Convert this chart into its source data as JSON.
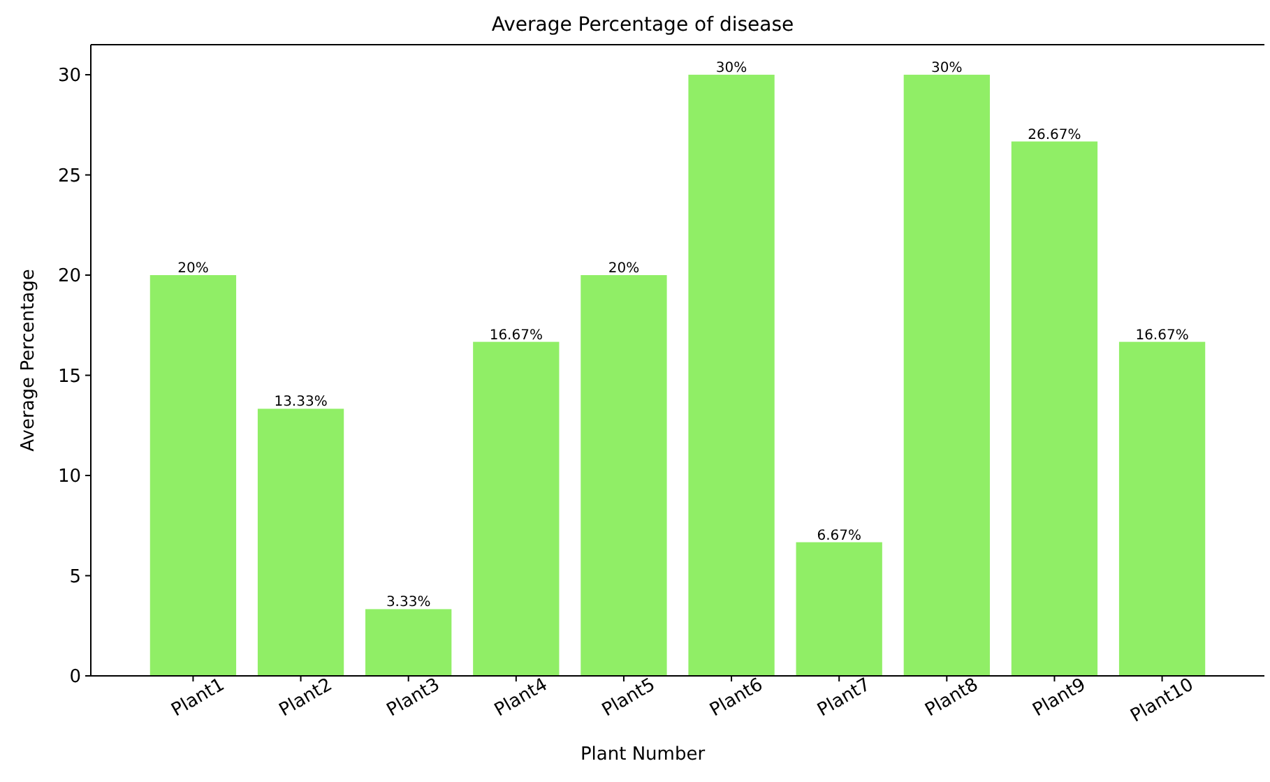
{
  "chart_data": {
    "type": "bar",
    "title": "Average Percentage of disease",
    "xlabel": "Plant Number",
    "ylabel": "Average Percentage",
    "categories": [
      "Plant1",
      "Plant2",
      "Plant3",
      "Plant4",
      "Plant5",
      "Plant6",
      "Plant7",
      "Plant8",
      "Plant9",
      "Plant10"
    ],
    "values": [
      20,
      13.33,
      3.33,
      16.67,
      20,
      30,
      6.67,
      30,
      26.67,
      16.67
    ],
    "value_labels": [
      "20%",
      "13.33%",
      "3.33%",
      "16.67%",
      "20%",
      "30%",
      "6.67%",
      "30%",
      "26.67%",
      "16.67%"
    ],
    "color": "#90ee66",
    "ylim": [
      0,
      31.5
    ],
    "yticks": [
      0,
      5,
      10,
      15,
      20,
      25,
      30
    ],
    "grid": false
  }
}
